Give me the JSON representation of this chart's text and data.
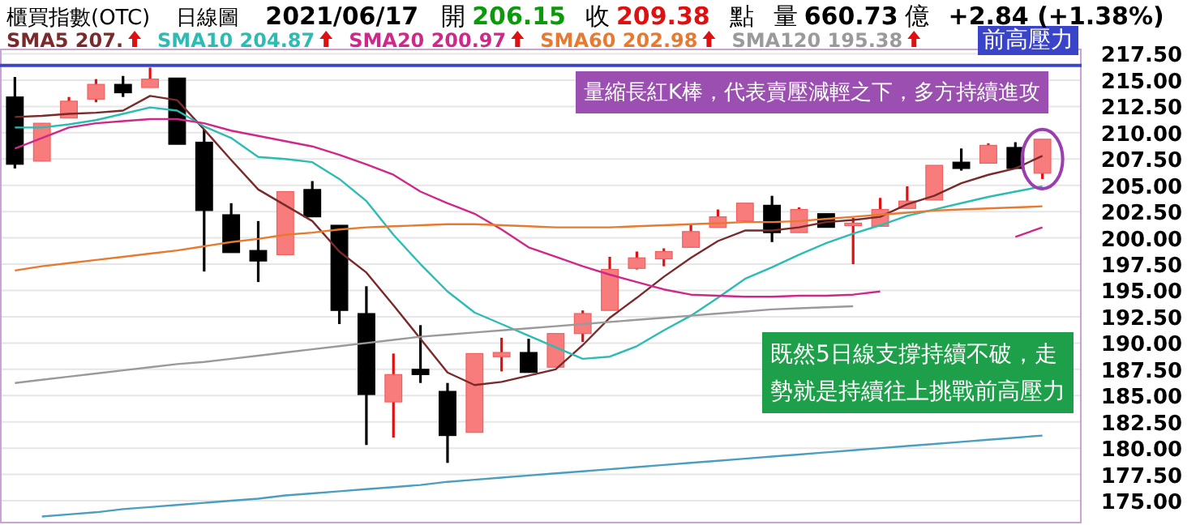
{
  "chart_data": {
    "type": "candlestick",
    "title": "櫃買指數(OTC)",
    "subtitle": "日線圖",
    "annotations": [
      "2021/06/17",
      "開",
      "206.15",
      "收",
      "209.38",
      "點",
      "量",
      "660.73",
      "億",
      "+2.84 (+1.38%)",
      "量縮長紅K棒，代表賣壓減輕之下，多方持續進攻",
      "既然5日線支撐持續不破，走勢就是持續往上挑戰前高壓力"
    ],
    "categories": [
      null,
      null,
      null,
      null,
      null,
      null,
      null,
      null,
      null,
      null,
      null,
      null,
      null,
      null,
      null,
      null,
      null,
      null,
      null,
      null,
      null,
      null,
      null,
      null,
      null,
      null,
      null,
      null,
      null,
      null,
      null,
      null,
      null,
      null,
      null,
      null,
      null,
      null,
      null
    ],
    "ohlc": [
      [
        213.4,
        215.3,
        206.6,
        207.0
      ],
      [
        207.3,
        210.9,
        207.3,
        210.9
      ],
      [
        211.4,
        213.4,
        211.4,
        213.0
      ],
      [
        213.2,
        215.1,
        212.9,
        214.6
      ],
      [
        214.6,
        215.4,
        213.4,
        213.8
      ],
      [
        214.3,
        216.2,
        214.3,
        215.1
      ],
      [
        215.2,
        215.2,
        208.9,
        208.9
      ],
      [
        209.1,
        210.3,
        196.8,
        202.6
      ],
      [
        202.2,
        203.3,
        198.6,
        198.6
      ],
      [
        198.8,
        201.6,
        195.8,
        197.8
      ],
      [
        198.4,
        204.4,
        198.4,
        204.4
      ],
      [
        204.6,
        205.4,
        202.0,
        202.0
      ],
      [
        201.2,
        201.2,
        191.8,
        193.1
      ],
      [
        192.8,
        195.4,
        180.3,
        185.1
      ],
      [
        184.4,
        189.0,
        181.0,
        187.0
      ],
      [
        187.5,
        191.7,
        186.2,
        187.0
      ],
      [
        185.4,
        186.2,
        178.6,
        181.2
      ],
      [
        181.5,
        189.0,
        181.5,
        189.0
      ],
      [
        188.7,
        190.5,
        187.3,
        189.1
      ],
      [
        189.1,
        190.4,
        187.2,
        187.2
      ],
      [
        187.7,
        190.9,
        187.7,
        190.9
      ],
      [
        190.9,
        193.1,
        190.1,
        192.8
      ],
      [
        193.1,
        198.2,
        193.1,
        197.0
      ],
      [
        197.1,
        198.7,
        197.0,
        198.1
      ],
      [
        198.0,
        199.0,
        197.3,
        198.7
      ],
      [
        199.1,
        201.3,
        199.1,
        200.6
      ],
      [
        201.0,
        202.7,
        201.0,
        202.0
      ],
      [
        201.6,
        203.3,
        201.6,
        203.3
      ],
      [
        203.1,
        204.0,
        199.6,
        200.5
      ],
      [
        200.5,
        202.9,
        200.5,
        202.7
      ],
      [
        202.3,
        202.3,
        201.0,
        201.0
      ],
      [
        201.2,
        201.9,
        197.5,
        201.4
      ],
      [
        201.1,
        203.8,
        201.1,
        202.7
      ],
      [
        202.8,
        204.9,
        202.8,
        203.5
      ],
      [
        203.6,
        206.9,
        203.6,
        206.9
      ],
      [
        207.2,
        208.5,
        206.4,
        206.6
      ],
      [
        207.1,
        209.0,
        207.1,
        208.8
      ],
      [
        208.6,
        209.1,
        206.6,
        206.6
      ],
      [
        206.15,
        209.38,
        205.6,
        209.38
      ]
    ],
    "colors": [
      "#000000",
      "#f87c7c",
      "#f87c7c",
      "#f87c7c",
      "#000000",
      "#f87c7c",
      "#000000",
      "#000000",
      "#000000",
      "#000000",
      "#f87c7c",
      "#000000",
      "#000000",
      "#000000",
      "#f87c7c",
      "#000000",
      "#000000",
      "#f87c7c",
      "#f87c7c",
      "#000000",
      "#f87c7c",
      "#f87c7c",
      "#f87c7c",
      "#f87c7c",
      "#f87c7c",
      "#f87c7c",
      "#f87c7c",
      "#f87c7c",
      "#000000",
      "#f87c7c",
      "#000000",
      "#f87c7c",
      "#f87c7c",
      "#f87c7c",
      "#f87c7c",
      "#000000",
      "#f87c7c",
      "#000000",
      "#f87c7c"
    ],
    "series": [
      {
        "name": "SMA5 207.",
        "type": "line",
        "color": "#7a2a2a",
        "values": [
          211.5,
          211.6,
          211.8,
          211.9,
          212.1,
          213.5,
          213.1,
          210.3,
          207.4,
          204.6,
          203.1,
          201.6,
          198.7,
          196.7,
          193.6,
          190.4,
          187.2,
          186.0,
          186.3,
          186.9,
          187.5,
          189.8,
          192.4,
          194.3,
          196.3,
          198.1,
          199.7,
          200.7,
          200.7,
          201.0,
          201.5,
          201.7,
          202.0,
          203.2,
          204.0,
          205.2,
          206.0,
          206.6,
          207.8
        ]
      },
      {
        "name": "SMA10 204.87",
        "type": "line",
        "color": "#2bbcb4",
        "values": [
          210.5,
          210.5,
          210.8,
          211.2,
          211.8,
          212.4,
          212.1,
          210.6,
          209.5,
          207.7,
          207.5,
          207.2,
          205.6,
          203.5,
          200.3,
          197.5,
          194.9,
          192.9,
          191.8,
          190.7,
          189.6,
          188.5,
          188.7,
          189.7,
          191.2,
          192.6,
          194.3,
          196.1,
          197.2,
          198.4,
          199.5,
          200.4,
          201.2,
          202.1,
          202.7,
          203.3,
          203.9,
          204.4,
          204.9
        ]
      },
      {
        "name": "SMA20 200.97",
        "type": "line",
        "color": "#d0288a",
        "values": [
          208.5,
          209.5,
          210.5,
          210.9,
          211.1,
          211.3,
          211.3,
          210.9,
          210.2,
          209.7,
          209.2,
          208.7,
          207.9,
          207.0,
          206.0,
          204.4,
          203.3,
          202.3,
          200.8,
          199.1,
          198.2,
          197.3,
          196.5,
          195.8,
          195.1,
          194.6,
          194.5,
          194.4,
          194.4,
          194.5,
          194.5,
          194.6,
          194.9,
          null,
          null,
          null,
          null,
          200.1,
          201.0
        ]
      },
      {
        "name": "SMA60 202.98",
        "type": "line",
        "color": "#e87a30",
        "values": [
          196.9,
          197.3,
          197.6,
          197.9,
          198.2,
          198.5,
          198.8,
          199.2,
          199.6,
          199.9,
          200.3,
          200.5,
          200.8,
          201.0,
          201.1,
          201.2,
          201.3,
          201.3,
          201.2,
          201.1,
          201.0,
          201.0,
          201.0,
          201.1,
          201.2,
          201.3,
          201.4,
          201.5,
          201.5,
          201.6,
          201.8,
          202.0,
          202.2,
          202.4,
          202.6,
          202.7,
          202.8,
          202.9,
          203.0
        ]
      },
      {
        "name": "SMA120 195.38",
        "type": "line",
        "color": "#9a9a9a",
        "values": [
          186.2,
          186.5,
          186.8,
          187.1,
          187.4,
          187.7,
          188.0,
          188.2,
          188.5,
          188.8,
          189.1,
          189.4,
          189.7,
          190.0,
          190.3,
          190.6,
          190.8,
          191.0,
          191.2,
          191.4,
          191.6,
          191.8,
          192.0,
          192.2,
          192.4,
          192.6,
          192.8,
          193.0,
          193.2,
          193.3,
          193.4,
          193.5,
          null,
          null,
          null,
          null,
          null,
          null,
          null
        ]
      },
      {
        "type": "line",
        "color": "#4a9fc0",
        "values": [
          null,
          173.5,
          173.7,
          173.9,
          174.2,
          174.4,
          174.6,
          174.8,
          175.0,
          175.2,
          175.5,
          175.7,
          175.9,
          176.1,
          176.3,
          176.5,
          176.8,
          177.0,
          177.2,
          177.4,
          177.6,
          177.8,
          178.0,
          178.2,
          178.4,
          178.6,
          178.8,
          179.0,
          179.2,
          179.4,
          179.6,
          179.8,
          180.0,
          180.2,
          180.4,
          180.6,
          180.8,
          181.0,
          181.2
        ]
      }
    ],
    "ylim": [
      173,
      218
    ],
    "yticks": [
      {
        "value": 175,
        "label": "175.00"
      },
      {
        "value": 177.5,
        "label": "177.50"
      },
      {
        "value": 180,
        "label": "180.00"
      },
      {
        "value": 182.5,
        "label": "182.50"
      },
      {
        "value": 185,
        "label": "185.00"
      },
      {
        "value": 187.5,
        "label": "187.50"
      },
      {
        "value": 190,
        "label": "190.00"
      },
      {
        "value": 192.5,
        "label": "192.50"
      },
      {
        "value": 195,
        "label": "195.00"
      },
      {
        "value": 197.5,
        "label": "197.50"
      },
      {
        "value": 200,
        "label": "200.00"
      },
      {
        "value": 202.5,
        "label": "202.50"
      },
      {
        "value": 205,
        "label": "205.00"
      },
      {
        "value": 207.5,
        "label": "207.50"
      },
      {
        "value": 210,
        "label": "210.00"
      },
      {
        "value": 212.5,
        "label": "212.50"
      },
      {
        "value": 215,
        "label": "215.00"
      },
      {
        "value": 217.5,
        "label": "217.50"
      }
    ],
    "tick_labels": "y",
    "ref_lines": [
      {
        "axis": "y",
        "value": 216.4,
        "label": "前高壓力",
        "color": "#3a44c8"
      }
    ],
    "grid": "y",
    "legend": "top"
  }
}
